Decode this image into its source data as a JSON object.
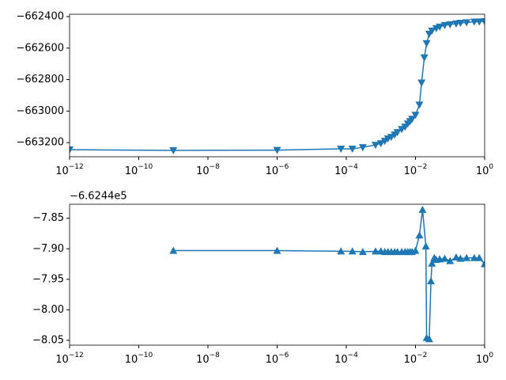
{
  "chart_data": [
    {
      "type": "line",
      "xscale": "log",
      "marker": "triangle-down",
      "color": "#1f77b4",
      "xlim": [
        1e-12,
        1
      ],
      "ylim": [
        -663290,
        -662385
      ],
      "xticks": [
        {
          "value": 1e-12,
          "label": "10",
          "sup": "−12"
        },
        {
          "value": 1e-10,
          "label": "10",
          "sup": "−10"
        },
        {
          "value": 1e-08,
          "label": "10",
          "sup": "−8"
        },
        {
          "value": 1e-06,
          "label": "10",
          "sup": "−6"
        },
        {
          "value": 0.0001,
          "label": "10",
          "sup": "−4"
        },
        {
          "value": 0.01,
          "label": "10",
          "sup": "−2"
        },
        {
          "value": 1,
          "label": "10",
          "sup": "0"
        }
      ],
      "yticks": [
        {
          "value": -663200,
          "label": "−663200"
        },
        {
          "value": -663000,
          "label": "−663000"
        },
        {
          "value": -662800,
          "label": "−662800"
        },
        {
          "value": -662600,
          "label": "−662600"
        },
        {
          "value": -662400,
          "label": "−662400"
        }
      ],
      "x": [
        1e-12,
        1e-09,
        1e-06,
        7e-05,
        0.00015,
        0.0003,
        0.0007,
        0.001,
        0.0013,
        0.0016,
        0.002,
        0.0025,
        0.003,
        0.004,
        0.005,
        0.006,
        0.007,
        0.008,
        0.01,
        0.013,
        0.015,
        0.018,
        0.021,
        0.025,
        0.03,
        0.04,
        0.05,
        0.07,
        0.1,
        0.15,
        0.2,
        0.3,
        0.5,
        0.7,
        1.0
      ],
      "values": [
        -663245,
        -663250,
        -663248,
        -663240,
        -663240,
        -663230,
        -663215,
        -663205,
        -663190,
        -663175,
        -663165,
        -663150,
        -663135,
        -663115,
        -663100,
        -663080,
        -663065,
        -663050,
        -663025,
        -662960,
        -662820,
        -662660,
        -662570,
        -662510,
        -662490,
        -662475,
        -662465,
        -662455,
        -662450,
        -662445,
        -662440,
        -662437,
        -662433,
        -662432,
        -662430
      ]
    },
    {
      "type": "line",
      "xscale": "log",
      "marker": "triangle-up",
      "color": "#1f77b4",
      "offset_text": "−6.6244e5",
      "xlim": [
        1e-12,
        1
      ],
      "ylim": [
        -8.058,
        -7.827
      ],
      "xticks": [
        {
          "value": 1e-12,
          "label": "10",
          "sup": "−12"
        },
        {
          "value": 1e-10,
          "label": "10",
          "sup": "−10"
        },
        {
          "value": 1e-08,
          "label": "10",
          "sup": "−8"
        },
        {
          "value": 1e-06,
          "label": "10",
          "sup": "−6"
        },
        {
          "value": 0.0001,
          "label": "10",
          "sup": "−4"
        },
        {
          "value": 0.01,
          "label": "10",
          "sup": "−2"
        },
        {
          "value": 1,
          "label": "10",
          "sup": "0"
        }
      ],
      "yticks": [
        {
          "value": -8.05,
          "label": "−8.05"
        },
        {
          "value": -8.0,
          "label": "−8.00"
        },
        {
          "value": -7.95,
          "label": "−7.95"
        },
        {
          "value": -7.9,
          "label": "−7.90"
        },
        {
          "value": -7.85,
          "label": "−7.85"
        }
      ],
      "x": [
        1e-09,
        1e-06,
        7e-05,
        0.00015,
        0.0003,
        0.0007,
        0.001,
        0.0013,
        0.0016,
        0.002,
        0.0025,
        0.003,
        0.004,
        0.005,
        0.006,
        0.007,
        0.008,
        0.01,
        0.013,
        0.016,
        0.02,
        0.021,
        0.025,
        0.028,
        0.03,
        0.035,
        0.04,
        0.05,
        0.07,
        0.1,
        0.15,
        0.2,
        0.3,
        0.5,
        0.7,
        1.0
      ],
      "values": [
        -7.903,
        -7.903,
        -7.904,
        -7.904,
        -7.905,
        -7.904,
        -7.904,
        -7.905,
        -7.905,
        -7.905,
        -7.905,
        -7.905,
        -7.905,
        -7.905,
        -7.905,
        -7.905,
        -7.905,
        -7.903,
        -7.878,
        -7.836,
        -7.896,
        -8.046,
        -8.048,
        -7.953,
        -7.924,
        -7.915,
        -7.918,
        -7.917,
        -7.916,
        -7.92,
        -7.914,
        -7.916,
        -7.915,
        -7.915,
        -7.915,
        -7.925
      ]
    }
  ]
}
